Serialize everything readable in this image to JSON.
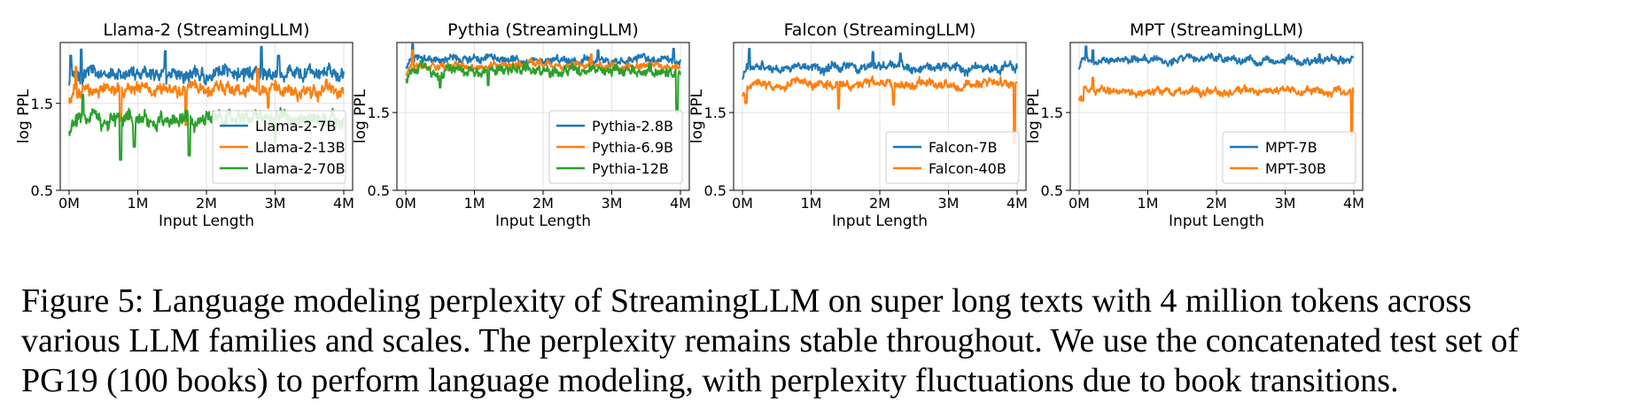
{
  "chart_data": [
    {
      "type": "line",
      "title": "Llama-2 (StreamingLLM)",
      "xlabel": "Input Length",
      "ylabel": "log PPL",
      "x_ticks": [
        "0M",
        "1M",
        "2M",
        "3M",
        "4M"
      ],
      "y_ticks": [
        "0.5",
        "1.5"
      ],
      "xlim": [
        0,
        4
      ],
      "ylim": [
        0.5,
        2.2
      ],
      "legend_position": "lower-right",
      "grid": true,
      "series": [
        {
          "name": "Llama-2-7B",
          "color": "#1f77b4",
          "mean": 1.85,
          "noise": 0.09,
          "spikes": [
            [
              0.02,
              2.05
            ],
            [
              0.18,
              2.12
            ],
            [
              1.4,
              2.1
            ],
            [
              2.8,
              2.15
            ],
            [
              3.05,
              2.05
            ]
          ]
        },
        {
          "name": "Llama-2-13B",
          "color": "#ff7f0e",
          "mean": 1.65,
          "noise": 0.08,
          "spikes": [
            [
              0.1,
              1.92
            ],
            [
              0.75,
              1.3
            ],
            [
              1.7,
              1.25
            ],
            [
              2.75,
              1.9
            ],
            [
              2.9,
              1.45
            ]
          ]
        },
        {
          "name": "Llama-2-70B",
          "color": "#2ca02c",
          "mean": 1.32,
          "noise": 0.09,
          "spikes": [
            [
              0.2,
              1.6
            ],
            [
              0.75,
              0.85
            ],
            [
              0.95,
              1.0
            ],
            [
              1.75,
              0.9
            ],
            [
              3.0,
              1.05
            ]
          ]
        }
      ]
    },
    {
      "type": "line",
      "title": "Pythia (StreamingLLM)",
      "xlabel": "Input Length",
      "ylabel": "log PPL",
      "x_ticks": [
        "0M",
        "1M",
        "2M",
        "3M",
        "4M"
      ],
      "y_ticks": [
        "0.5",
        "1.5"
      ],
      "xlim": [
        0,
        4
      ],
      "ylim": [
        0.5,
        2.4
      ],
      "legend_position": "lower-right",
      "grid": true,
      "series": [
        {
          "name": "Pythia-2.8B",
          "color": "#1f77b4",
          "mean": 2.18,
          "noise": 0.05,
          "spikes": [
            [
              0.1,
              2.38
            ],
            [
              2.8,
              2.3
            ],
            [
              3.9,
              2.32
            ]
          ]
        },
        {
          "name": "Pythia-6.9B",
          "color": "#ff7f0e",
          "mean": 2.1,
          "noise": 0.05,
          "spikes": [
            [
              0.1,
              2.3
            ],
            [
              2.7,
              2.25
            ]
          ]
        },
        {
          "name": "Pythia-12B",
          "color": "#2ca02c",
          "mean": 2.04,
          "noise": 0.07,
          "spikes": [
            [
              0.5,
              1.82
            ],
            [
              1.2,
              1.85
            ],
            [
              3.95,
              1.5
            ]
          ]
        }
      ]
    },
    {
      "type": "line",
      "title": "Falcon (StreamingLLM)",
      "xlabel": "Input Length",
      "ylabel": "log PPL",
      "x_ticks": [
        "0M",
        "1M",
        "2M",
        "3M",
        "4M"
      ],
      "y_ticks": [
        "0.5",
        "1.5"
      ],
      "xlim": [
        0,
        4
      ],
      "ylim": [
        0.5,
        2.4
      ],
      "legend_position": "lower-right",
      "grid": true,
      "series": [
        {
          "name": "Falcon-7B",
          "color": "#1f77b4",
          "mean": 2.08,
          "noise": 0.06,
          "spikes": [
            [
              0.1,
              2.32
            ],
            [
              1.9,
              2.28
            ],
            [
              2.3,
              2.26
            ]
          ]
        },
        {
          "name": "Falcon-40B",
          "color": "#ff7f0e",
          "mean": 1.86,
          "noise": 0.06,
          "spikes": [
            [
              0.05,
              1.62
            ],
            [
              1.4,
              1.55
            ],
            [
              2.2,
              1.6
            ],
            [
              3.96,
              1.1
            ]
          ]
        }
      ]
    },
    {
      "type": "line",
      "title": "MPT (StreamingLLM)",
      "xlabel": "Input Length",
      "ylabel": "log PPL",
      "x_ticks": [
        "0M",
        "1M",
        "2M",
        "3M",
        "4M"
      ],
      "y_ticks": [
        "0.5",
        "1.5"
      ],
      "xlim": [
        0,
        4
      ],
      "ylim": [
        0.5,
        2.4
      ],
      "legend_position": "lower-right",
      "grid": true,
      "series": [
        {
          "name": "MPT-7B",
          "color": "#1f77b4",
          "mean": 2.18,
          "noise": 0.05,
          "spikes": [
            [
              0.1,
              2.35
            ],
            [
              0.2,
              2.3
            ],
            [
              3.5,
              2.25
            ]
          ]
        },
        {
          "name": "MPT-30B",
          "color": "#ff7f0e",
          "mean": 1.78,
          "noise": 0.05,
          "spikes": [
            [
              0.05,
              1.65
            ],
            [
              0.2,
              1.95
            ],
            [
              3.97,
              1.2
            ]
          ]
        }
      ]
    }
  ],
  "caption": {
    "lines": [
      "Figure 5: Language modeling perplexity of StreamingLLM on super long texts with 4 million tokens across",
      "various LLM families and scales. The perplexity remains stable throughout. We use the concatenated test set of",
      "PG19 (100 books) to perform language modeling, with perplexity fluctuations due to book transitions."
    ]
  }
}
